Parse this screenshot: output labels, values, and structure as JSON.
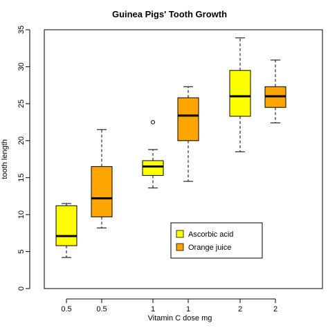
{
  "chart_data": {
    "type": "boxplot",
    "title": "Guinea Pigs' Tooth Growth",
    "xlabel": "Vitamin C dose mg",
    "ylabel": "tooth length",
    "ylim": [
      0,
      35
    ],
    "y_ticks": [
      0,
      5,
      10,
      15,
      20,
      25,
      30,
      35
    ],
    "grid": false,
    "legend_position": "bottom-right",
    "categories": [
      "0.5",
      "0.5",
      "1",
      "1",
      "2",
      "2"
    ],
    "series": [
      {
        "name": "Ascorbic acid",
        "color": "#ffff00"
      },
      {
        "name": "Orange juice",
        "color": "#ffa500"
      }
    ],
    "boxes": [
      {
        "label": "0.5",
        "series": "Ascorbic acid",
        "min": 4.2,
        "q1": 5.8,
        "median": 7.1,
        "q3": 11.2,
        "max": 11.5,
        "outliers": []
      },
      {
        "label": "0.5",
        "series": "Orange juice",
        "min": 8.2,
        "q1": 9.7,
        "median": 12.2,
        "q3": 16.5,
        "max": 21.5,
        "outliers": []
      },
      {
        "label": "1",
        "series": "Ascorbic acid",
        "min": 13.6,
        "q1": 15.3,
        "median": 16.5,
        "q3": 17.3,
        "max": 18.8,
        "outliers": [
          22.5
        ]
      },
      {
        "label": "1",
        "series": "Orange juice",
        "min": 14.5,
        "q1": 20.0,
        "median": 23.4,
        "q3": 25.8,
        "max": 27.3,
        "outliers": []
      },
      {
        "label": "2",
        "series": "Ascorbic acid",
        "min": 18.5,
        "q1": 23.3,
        "median": 26.0,
        "q3": 29.5,
        "max": 33.9,
        "outliers": []
      },
      {
        "label": "2",
        "series": "Orange juice",
        "min": 22.4,
        "q1": 24.5,
        "median": 26.0,
        "q3": 27.3,
        "max": 30.9,
        "outliers": []
      }
    ]
  }
}
